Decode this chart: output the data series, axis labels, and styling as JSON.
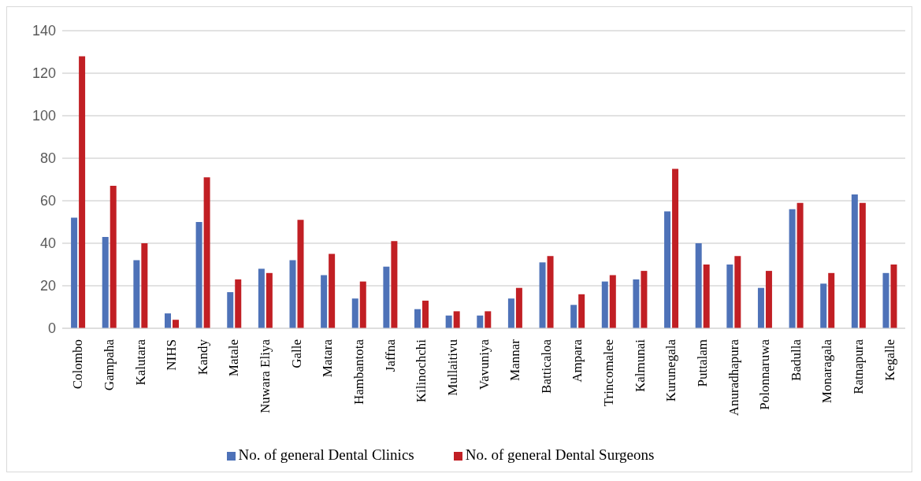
{
  "chart_data": {
    "type": "bar",
    "categories": [
      "Colombo",
      "Gampaha",
      "Kalutara",
      "NIHS",
      "Kandy",
      "Matale",
      "Nuwara Eliya",
      "Galle",
      "Matara",
      "Hambantota",
      "Jaffna",
      "Kilinochchi",
      "Mullaitivu",
      "Vavuniya",
      "Mannar",
      "Batticaloa",
      "Ampara",
      "Trincomalee",
      "Kalmunai",
      "Kurunegala",
      "Puttalam",
      "Anuradhapura",
      "Polonnaruwa",
      "Badulla",
      "Monaragala",
      "Ratnapura",
      "Kegalle"
    ],
    "series": [
      {
        "name": "No. of general Dental Clinics",
        "color": "#4e72b8",
        "values": [
          52,
          43,
          32,
          7,
          50,
          17,
          28,
          32,
          25,
          14,
          29,
          9,
          6,
          6,
          14,
          31,
          11,
          22,
          23,
          55,
          40,
          30,
          19,
          56,
          21,
          63,
          26
        ]
      },
      {
        "name": "No. of general Dental Surgeons",
        "color": "#c11f24",
        "values": [
          128,
          67,
          40,
          4,
          71,
          23,
          26,
          51,
          35,
          22,
          41,
          13,
          8,
          8,
          19,
          34,
          16,
          25,
          27,
          75,
          30,
          34,
          27,
          59,
          26,
          59,
          30
        ]
      }
    ],
    "ylim": [
      0,
      140
    ],
    "yticks": [
      0,
      20,
      40,
      60,
      80,
      100,
      120,
      140
    ],
    "grid": "y",
    "legend": "bottom"
  }
}
